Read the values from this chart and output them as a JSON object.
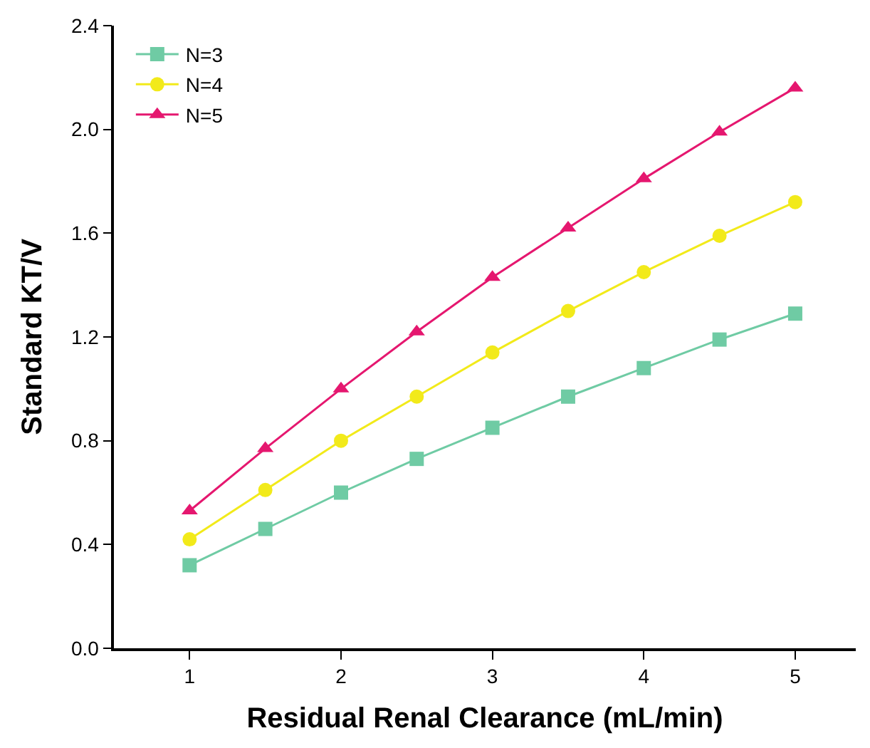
{
  "chart_data": {
    "type": "line",
    "xlabel": "Residual Renal Clearance (mL/min)",
    "ylabel": "Standard KT/V",
    "x": [
      1,
      1.5,
      2,
      2.5,
      3,
      3.5,
      4,
      4.5,
      5
    ],
    "series": [
      {
        "name": "N=3",
        "color": "#6fcba4",
        "marker": "square",
        "values": [
          0.32,
          0.46,
          0.6,
          0.73,
          0.85,
          0.97,
          1.08,
          1.19,
          1.29
        ]
      },
      {
        "name": "N=4",
        "color": "#f2ea1a",
        "marker": "circle",
        "values": [
          0.42,
          0.61,
          0.8,
          0.97,
          1.14,
          1.3,
          1.45,
          1.59,
          1.72
        ]
      },
      {
        "name": "N=5",
        "color": "#e5176f",
        "marker": "triangle",
        "values": [
          0.53,
          0.77,
          1.0,
          1.22,
          1.43,
          1.62,
          1.81,
          1.99,
          2.16
        ]
      }
    ],
    "xlim": [
      0.5,
      5.4
    ],
    "xticks": [
      1,
      2,
      3,
      4,
      5
    ],
    "ylim": [
      0,
      2.4
    ],
    "yticks": [
      {
        "value": 0,
        "label": "0.0"
      },
      0.4,
      0.8,
      1.2,
      1.6,
      {
        "value": 2,
        "label": "2.0"
      },
      2.4
    ],
    "legend": "top left",
    "line_style": "solid"
  }
}
